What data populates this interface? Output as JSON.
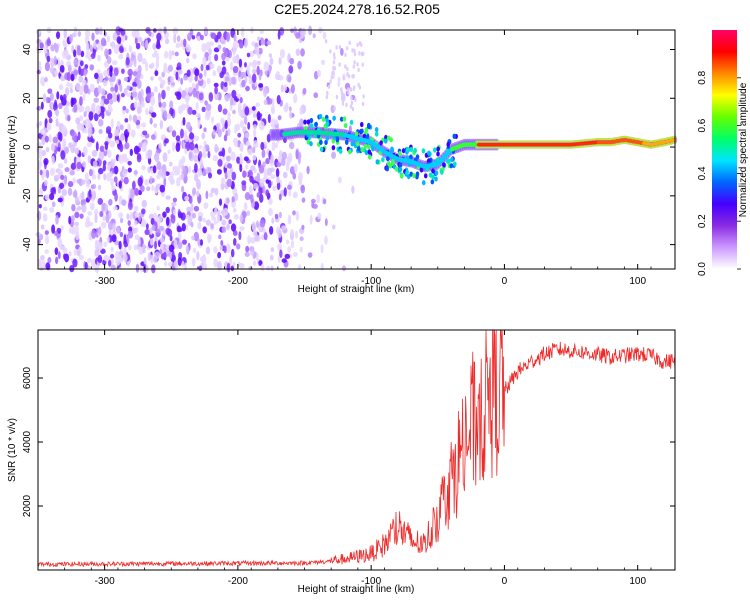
{
  "title": "C2E5.2024.278.16.52.R05",
  "chart_data": [
    {
      "type": "heatmap",
      "xlabel": "Height of straight line (km)",
      "ylabel": "Frequency (Hz)",
      "xlim": [
        -350,
        128
      ],
      "ylim": [
        -50,
        48
      ],
      "x_ticks": [
        -300,
        -200,
        -100,
        0,
        100
      ],
      "y_ticks": [
        -40,
        -20,
        0,
        20,
        40
      ],
      "colorbar": {
        "label": "Normalized spectral amplitude",
        "range": [
          0,
          1
        ],
        "ticks": [
          "0.0",
          "0.2",
          "0.4",
          "0.6",
          "0.8"
        ],
        "colors": [
          "#ffffff",
          "#cc99ff",
          "#8a2be2",
          "#4400ff",
          "#0066ff",
          "#00e5ff",
          "#00ff66",
          "#66ff00",
          "#ffff00",
          "#ff8800",
          "#ff0000",
          "#ff0066"
        ]
      },
      "ridge": {
        "x": [
          -170,
          -155,
          -140,
          -120,
          -100,
          -90,
          -80,
          -70,
          -60,
          -50,
          -45,
          -40,
          -30,
          -20,
          -10,
          0,
          20,
          50,
          70,
          80,
          90,
          100,
          110,
          120,
          128
        ],
        "y": [
          5,
          6,
          6,
          5,
          2,
          -2,
          -5,
          -6,
          -8,
          -7,
          -4,
          -1,
          1,
          1,
          1,
          1,
          1,
          1,
          2,
          2,
          3,
          2,
          1,
          2,
          3
        ]
      }
    },
    {
      "type": "line",
      "xlabel": "Height of straight line (km)",
      "ylabel": "SNR (10 * v/v)",
      "xlim": [
        -350,
        128
      ],
      "ylim": [
        0,
        7500
      ],
      "x_ticks": [
        -300,
        -200,
        -100,
        0,
        100
      ],
      "y_ticks": [
        2000,
        4000,
        6000
      ],
      "color": "#ee2a2a",
      "envelope": {
        "x": [
          -350,
          -250,
          -150,
          -120,
          -100,
          -90,
          -80,
          -70,
          -60,
          -50,
          -40,
          -30,
          -20,
          -10,
          -5,
          0,
          10,
          20,
          30,
          40,
          50,
          60,
          80,
          100,
          110,
          120,
          128
        ],
        "y": [
          180,
          200,
          220,
          300,
          450,
          700,
          1200,
          800,
          700,
          1500,
          2500,
          3500,
          4300,
          5000,
          5200,
          5600,
          6200,
          6500,
          6750,
          6900,
          6850,
          6800,
          6650,
          6750,
          6700,
          6500,
          6550
        ]
      }
    }
  ]
}
